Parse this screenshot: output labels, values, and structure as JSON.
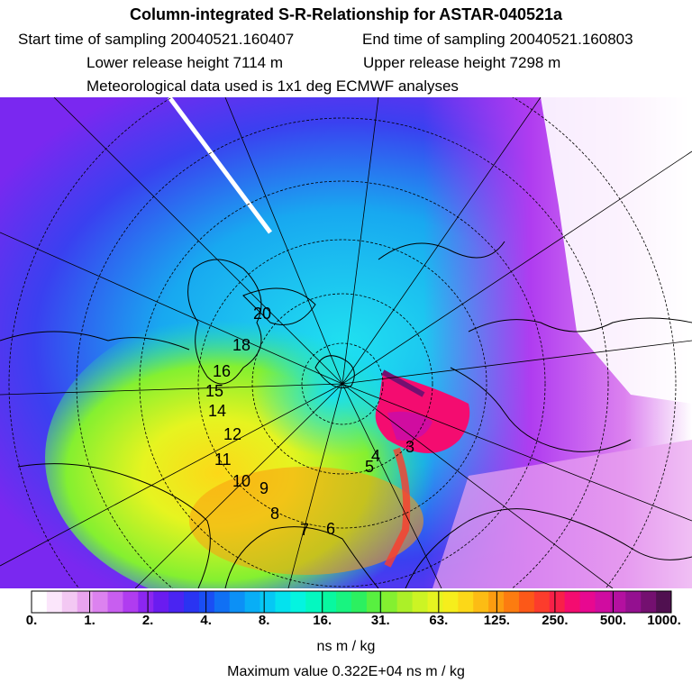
{
  "header": {
    "title": "Column-integrated S-R-Relationship for ASTAR-040521a",
    "start_time": "Start time of sampling 20040521.160407",
    "end_time": "End time of sampling 20040521.160803",
    "lower_release": "Lower release height 7114 m",
    "upper_release": "Upper release height 7298 m",
    "meteo": "Meteorological data used is 1x1 deg ECMWF analyses"
  },
  "map": {
    "labels": [
      {
        "id": "lbl-20",
        "text": "20"
      },
      {
        "id": "lbl-18",
        "text": "18"
      },
      {
        "id": "lbl-16",
        "text": "16"
      },
      {
        "id": "lbl-15",
        "text": "15"
      },
      {
        "id": "lbl-14",
        "text": "14"
      },
      {
        "id": "lbl-12",
        "text": "12"
      },
      {
        "id": "lbl-11",
        "text": "11"
      },
      {
        "id": "lbl-10",
        "text": "10"
      },
      {
        "id": "lbl-9",
        "text": "9"
      },
      {
        "id": "lbl-8",
        "text": "8"
      },
      {
        "id": "lbl-7",
        "text": "7"
      },
      {
        "id": "lbl-6",
        "text": "6"
      },
      {
        "id": "lbl-5",
        "text": "5"
      },
      {
        "id": "lbl-4",
        "text": "4"
      },
      {
        "id": "lbl-3",
        "text": "3"
      }
    ]
  },
  "colorbar": {
    "labels": [
      "0.",
      "1.",
      "2.",
      "4.",
      "8.",
      "16.",
      "31.",
      "63.",
      "125.",
      "250.",
      "500.",
      "1000."
    ],
    "colors": [
      "#ffffff",
      "#fbe6fb",
      "#f3c8f3",
      "#e9a4ef",
      "#dc82ef",
      "#c85ef0",
      "#b03cf0",
      "#8c26f0",
      "#6a1cf0",
      "#4a24f2",
      "#2a34f2",
      "#1a4ef4",
      "#1070f4",
      "#0c90f6",
      "#08aef6",
      "#06c8f4",
      "#04e2ee",
      "#04f4e0",
      "#04f8c0",
      "#08f8a0",
      "#18f480",
      "#2cf060",
      "#58f040",
      "#84f030",
      "#acf028",
      "#ccf424",
      "#e6f420",
      "#f6ee1c",
      "#fcd818",
      "#fcbc14",
      "#fc9c10",
      "#fc7c10",
      "#fc5818",
      "#fc3c2c",
      "#f82048",
      "#f40c70",
      "#e80890",
      "#d00ca0",
      "#b410a0",
      "#941090",
      "#741070",
      "#501050"
    ],
    "units": "ns m / kg",
    "max_value": "Maximum value  0.322E+04 ns m / kg"
  }
}
